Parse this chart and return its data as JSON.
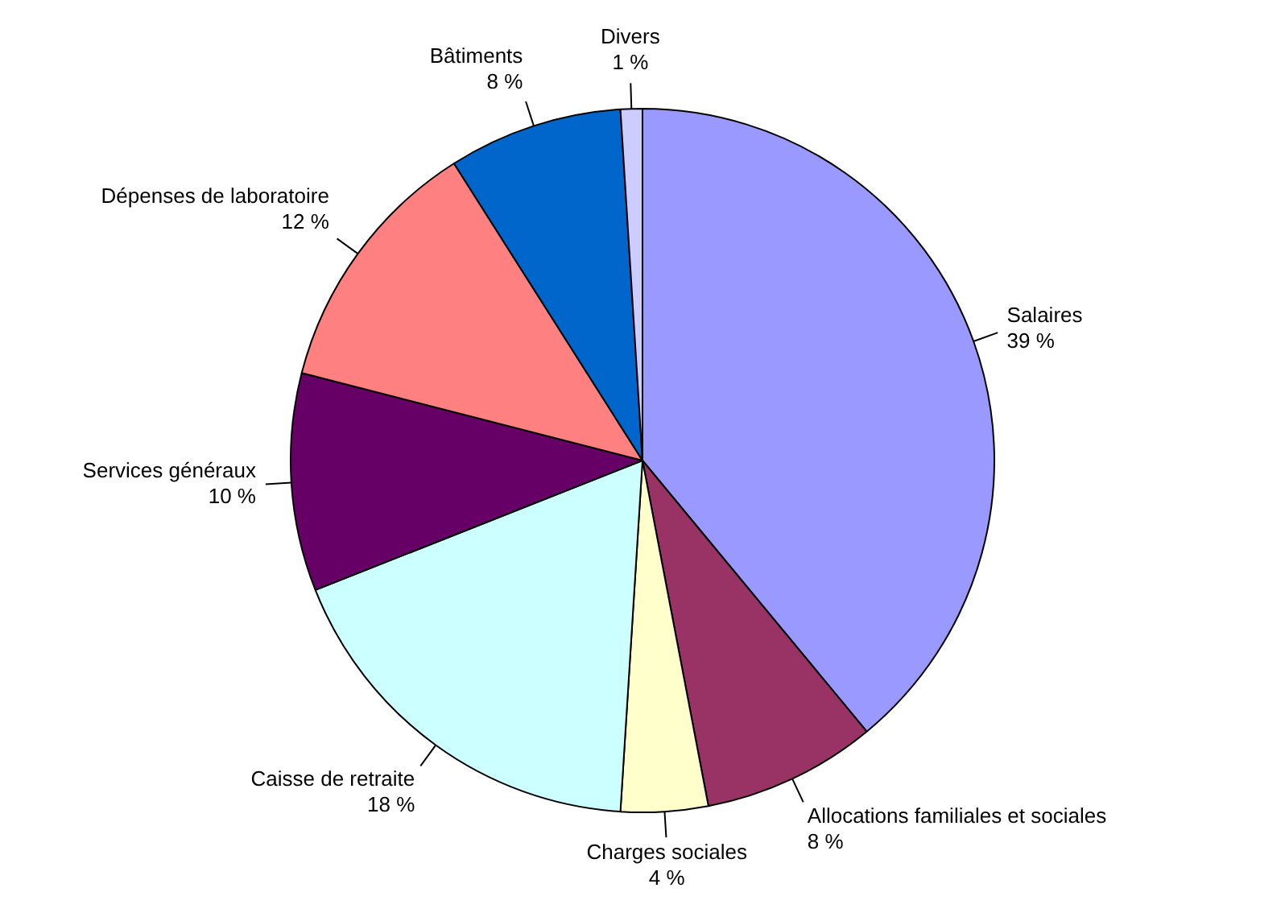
{
  "chart_data": {
    "type": "pie",
    "categories": [
      "Salaires",
      "Allocations familiales et sociales",
      "Charges sociales",
      "Caisse de retraite",
      "Services généraux",
      "Dépenses de laboratoire",
      "Bâtiments",
      "Divers"
    ],
    "values": [
      39,
      8,
      4,
      18,
      10,
      12,
      8,
      1
    ],
    "value_labels": [
      "39 %",
      "8 %",
      "4 %",
      "18 %",
      "10 %",
      "12 %",
      "8 %",
      "1 %"
    ],
    "colors": [
      "#9999ff",
      "#993366",
      "#ffffcc",
      "#ccffff",
      "#660066",
      "#ff8080",
      "#0066cc",
      "#ccccff"
    ],
    "legend": false
  }
}
